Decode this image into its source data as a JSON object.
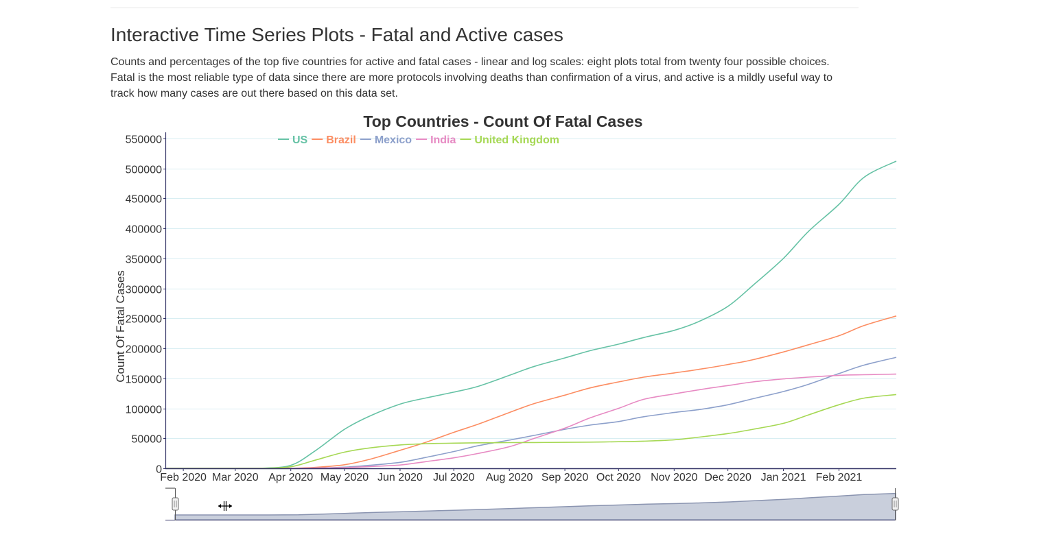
{
  "page": {
    "title": "Interactive Time Series Plots - Fatal and Active cases",
    "description": "Counts and percentages of the top five countries for active and fatal cases - linear and log scales: eight plots total from twenty four possible choices. Fatal is the most reliable type of data since there are more protocols involving deaths than confirmation of a virus, and active is a mildly useful way to track how many cases are out there based on this data set."
  },
  "chart_data": {
    "type": "line",
    "title": "Top Countries - Count Of Fatal Cases",
    "xlabel": "",
    "ylabel": "Count Of Fatal Cases",
    "ylim": [
      0,
      560000
    ],
    "y_ticks": [
      0,
      50000,
      100000,
      150000,
      200000,
      250000,
      300000,
      350000,
      400000,
      450000,
      500000,
      550000
    ],
    "y_tick_labels": [
      "0",
      "50000",
      "100000",
      "150000",
      "200000",
      "250000",
      "300000",
      "350000",
      "400000",
      "450000",
      "500000",
      "550000"
    ],
    "x_range": [
      "2020-01-22",
      "2021-03-05"
    ],
    "x_ticks": [
      "2020-02-01",
      "2020-03-01",
      "2020-04-01",
      "2020-05-01",
      "2020-06-01",
      "2020-07-01",
      "2020-08-01",
      "2020-09-01",
      "2020-10-01",
      "2020-11-01",
      "2020-12-01",
      "2021-01-01",
      "2021-02-01"
    ],
    "x_tick_labels": [
      "Feb 2020",
      "Mar 2020",
      "Apr 2020",
      "May 2020",
      "Jun 2020",
      "Jul 2020",
      "Aug 2020",
      "Sep 2020",
      "Oct 2020",
      "Nov 2020",
      "Dec 2020",
      "Jan 2021",
      "Feb 2021"
    ],
    "grid": true,
    "legend_position": "top-center",
    "x": [
      "2020-01-22",
      "2020-03-01",
      "2020-03-15",
      "2020-04-01",
      "2020-04-15",
      "2020-05-01",
      "2020-05-15",
      "2020-06-01",
      "2020-06-15",
      "2020-07-01",
      "2020-07-15",
      "2020-08-01",
      "2020-08-15",
      "2020-09-01",
      "2020-09-15",
      "2020-10-01",
      "2020-10-15",
      "2020-11-01",
      "2020-11-15",
      "2020-12-01",
      "2020-12-15",
      "2021-01-01",
      "2021-01-15",
      "2021-02-01",
      "2021-02-15",
      "2021-03-05"
    ],
    "series": [
      {
        "name": "US",
        "color": "#66c2a5",
        "values": [
          0,
          0,
          60,
          5000,
          30000,
          65000,
          87000,
          107000,
          117000,
          127000,
          137000,
          155000,
          170000,
          184000,
          196000,
          207000,
          218000,
          230000,
          245000,
          270000,
          305000,
          350000,
          395000,
          440000,
          485000,
          512000
        ]
      },
      {
        "name": "Brazil",
        "color": "#fc8d62",
        "values": [
          0,
          0,
          0,
          200,
          1700,
          6000,
          15000,
          30000,
          43000,
          60000,
          74000,
          93000,
          108000,
          122000,
          134000,
          144000,
          152000,
          159000,
          165000,
          173000,
          181000,
          194000,
          206000,
          221000,
          238000,
          254000
        ]
      },
      {
        "name": "Mexico",
        "color": "#8da0cb",
        "values": [
          0,
          0,
          0,
          30,
          400,
          2000,
          5000,
          10000,
          18000,
          28000,
          38000,
          47000,
          55000,
          65000,
          72000,
          78000,
          86000,
          93000,
          98000,
          106000,
          116000,
          128000,
          140000,
          158000,
          172000,
          185000
        ]
      },
      {
        "name": "India",
        "color": "#e78ac3",
        "values": [
          0,
          0,
          0,
          40,
          400,
          1200,
          3000,
          5500,
          11000,
          17500,
          25000,
          36000,
          50000,
          67000,
          84000,
          100000,
          115000,
          124000,
          131000,
          138000,
          144000,
          149000,
          152000,
          155000,
          156000,
          157000
        ]
      },
      {
        "name": "United Kingdom",
        "color": "#a6d854",
        "values": [
          0,
          0,
          20,
          2600,
          14000,
          27000,
          34000,
          39000,
          41000,
          42000,
          42500,
          42800,
          43000,
          43300,
          43700,
          44300,
          45300,
          47500,
          52000,
          58000,
          65000,
          75000,
          89000,
          106000,
          117000,
          123000
        ]
      }
    ]
  }
}
